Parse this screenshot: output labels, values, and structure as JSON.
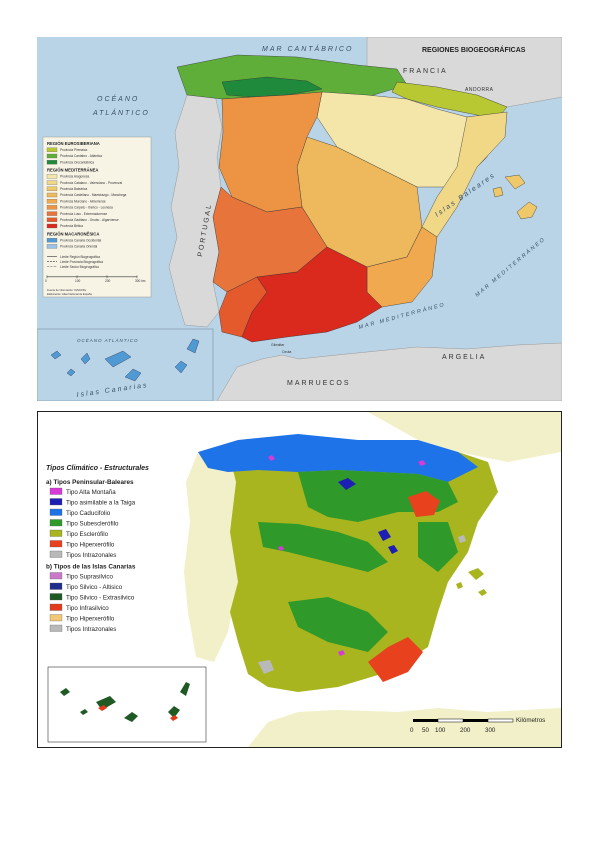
{
  "map1": {
    "title": "REGIONES BIOGEOGRÁFICAS",
    "labels": {
      "mar_cantabrico": "MAR CANTÁBRICO",
      "oceano": "OCÉANO",
      "atlantico": "ATLÁNTICO",
      "francia": "FRANCIA",
      "andorra": "ANDORRA",
      "portugal": "PORTUGAL",
      "islas_baleares": "Islas Baleares",
      "mar_mediterraneo_ne": "MAR MEDITERRÁNEO",
      "mar_mediterraneo_s": "MAR MEDITERRÁNEO",
      "argelia": "ARGELIA",
      "marruecos": "MARRUECOS",
      "islas_canarias": "Islas Canarias",
      "oceano_atlantico_inset": "OCÉANO ATLÁNTICO",
      "ceuta": "Ceuta",
      "gibraltar": "Gibraltar"
    },
    "legend": {
      "eurosiberiana": {
        "heading": "REGIÓN EUROSIBERIANA",
        "items": [
          {
            "label": "Provincia Pirenaica",
            "color": "#b8c832"
          },
          {
            "label": "Provincia Cantabro - Atlántica",
            "color": "#5fae3a"
          },
          {
            "label": "Provincia Orocantábrica",
            "color": "#1f8a3c"
          }
        ]
      },
      "mediterranea": {
        "heading": "REGIÓN MEDITERRÁNEA",
        "items": [
          {
            "label": "Provincia Aragonesa",
            "color": "#f3e6a8"
          },
          {
            "label": "Provincia Catalano - Valenciano - Provenzal",
            "color": "#f0d887"
          },
          {
            "label": "Provincia Baleárica",
            "color": "#efc86a"
          },
          {
            "label": "Provincia Castellano - Maestrazgo - Manchega",
            "color": "#eeb95c"
          },
          {
            "label": "Provincia Murciano - Almeriense",
            "color": "#f1a94f"
          },
          {
            "label": "Provincia Carpeto - Ibérico - Leonesa",
            "color": "#ec9443"
          },
          {
            "label": "Provincia Luso - Extremadurense",
            "color": "#e7743a"
          },
          {
            "label": "Provincia Gaditano - Onubo - Algarviense",
            "color": "#e55a2c"
          },
          {
            "label": "Provincia Bética",
            "color": "#d92a1d"
          }
        ]
      },
      "macaronesica": {
        "heading": "REGIÓN MACARONÉSICA",
        "items": [
          {
            "label": "Provincia Canaria Occidental",
            "color": "#4f9ad3"
          },
          {
            "label": "Provincia Canaria Oriental",
            "color": "#9cc3e5"
          }
        ]
      },
      "lines": [
        {
          "label": "Límite Región Biogeográfica"
        },
        {
          "label": "Límite Provincia Biogeográfica"
        },
        {
          "label": "Límite Sector Biogeográfico"
        }
      ],
      "scale": [
        "0",
        "100",
        "200",
        "300 km"
      ],
      "source": [
        "Fuente de información: IGN/CNIG",
        "Elaboración: Atlas Nacional de España"
      ]
    }
  },
  "map2": {
    "title": "Tipos Climático - Estructurales",
    "group_a": {
      "heading": "a) Tipos Peninsular-Baleares",
      "items": [
        {
          "label": "Tipo Alta Montaña",
          "color": "#d83ad8"
        },
        {
          "label": "Tipo asimilable a la Taiga",
          "color": "#1d1fb4"
        },
        {
          "label": "Tipo Caducifolio",
          "color": "#1e73e8"
        },
        {
          "label": "Tipo Subesclerófilo",
          "color": "#2f9a2a"
        },
        {
          "label": "Tipo Esclerófilo",
          "color": "#a9b51e"
        },
        {
          "label": "Tipo Hiperxerófilo",
          "color": "#e8411e"
        },
        {
          "label": "Tipos Intrazonales",
          "color": "#b9b9b9"
        }
      ]
    },
    "group_b": {
      "heading": "b) Tipos de las Islas Canarias",
      "items": [
        {
          "label": "Tipo Suprasilvico",
          "color": "#c879c8"
        },
        {
          "label": "Tipo Silvico - Altisico",
          "color": "#1f2e8c"
        },
        {
          "label": "Tipo Silvico - Extrasilvico",
          "color": "#1f5a24"
        },
        {
          "label": "Tipo Infrasilvico",
          "color": "#e23b1c"
        },
        {
          "label": "Tipo Hiperxerófilo",
          "color": "#f0c878"
        },
        {
          "label": "Tipos Intrazonales",
          "color": "#b9b9b9"
        }
      ]
    },
    "scale": {
      "unit": "Kilómetros",
      "ticks": [
        "0",
        "50",
        "100",
        "200",
        "300"
      ]
    }
  }
}
